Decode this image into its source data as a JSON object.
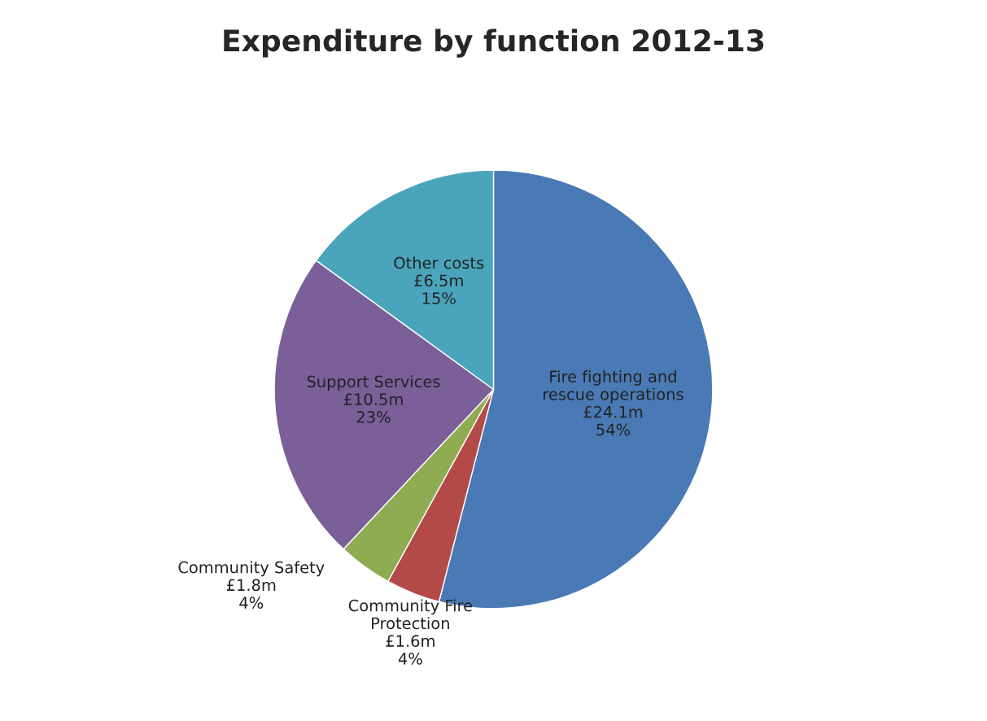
{
  "chart_data": {
    "type": "pie",
    "title": "Expenditure by function 2012-13",
    "categories": [
      "Fire fighting and rescue operations",
      "Community Fire Protection",
      "Community Safety",
      "Support Services",
      "Other costs"
    ],
    "values": [
      54,
      4,
      4,
      23,
      15
    ],
    "value_labels": [
      "£24.1m 54%",
      "£1.6m 4%",
      "£1.8m 4%",
      "£10.5m 23%",
      "£6.5m 15%"
    ],
    "colors": [
      "#4a7ab5",
      "#b34a47",
      "#8fac52",
      "#7a5f99",
      "#4aa4bb"
    ],
    "legend": false
  }
}
